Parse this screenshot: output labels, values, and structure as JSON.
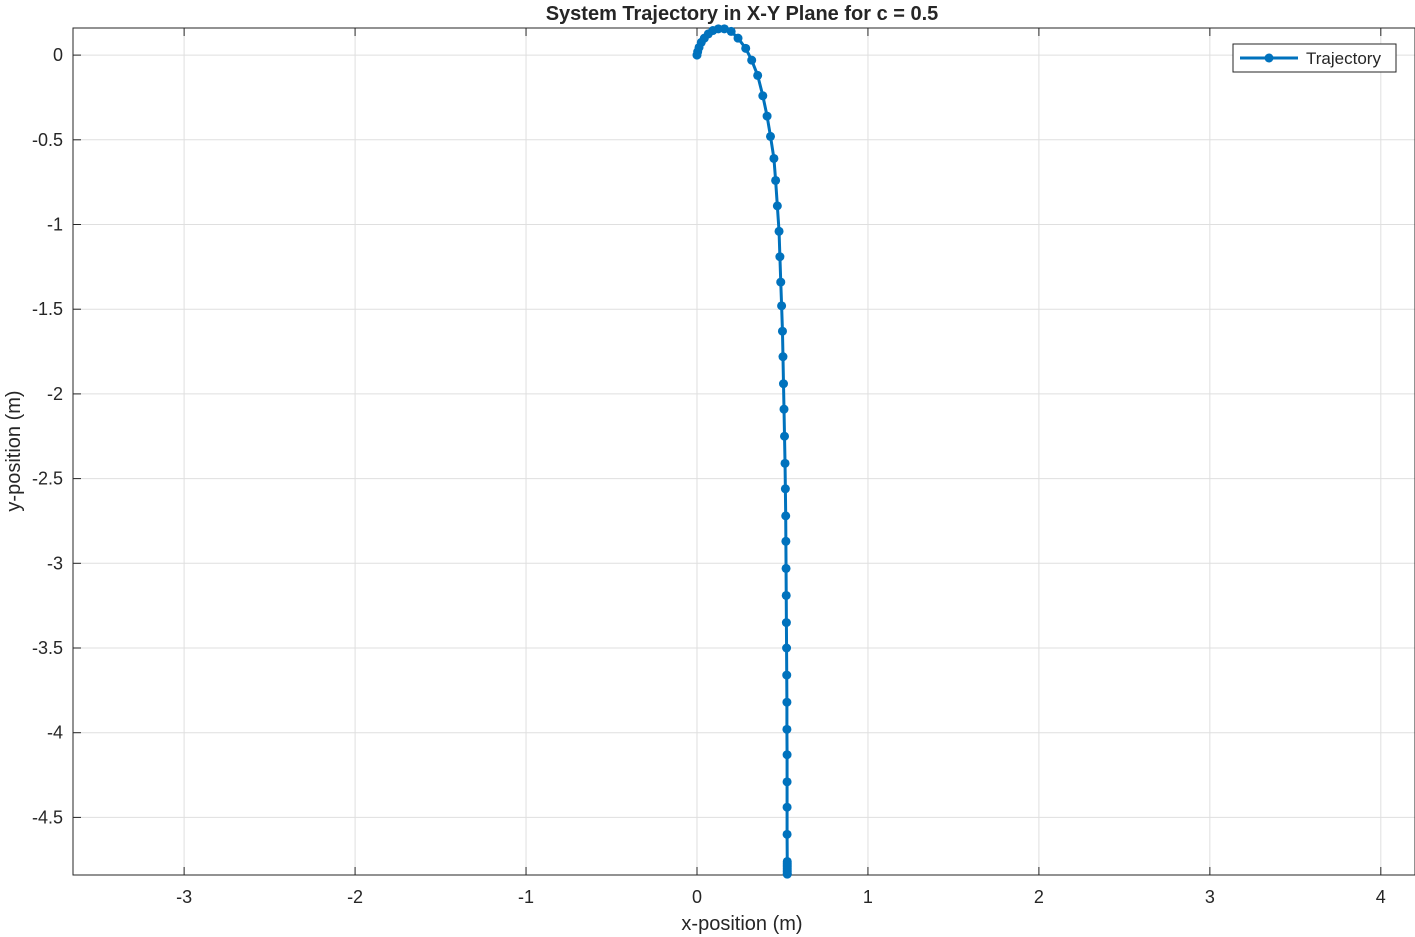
{
  "chart_data": {
    "type": "line",
    "title": "System Trajectory in X-Y Plane for c = 0.5",
    "xlabel": "x-position (m)",
    "ylabel": "y-position (m)",
    "xlim": [
      -3.65,
      4.2
    ],
    "ylim": [
      -4.84,
      0.16
    ],
    "xticks": [
      -3,
      -2,
      -1,
      0,
      1,
      2,
      3,
      4
    ],
    "xtick_labels": [
      "-3",
      "-2",
      "-1",
      "0",
      "1",
      "2",
      "3",
      "4"
    ],
    "yticks": [
      0,
      -0.5,
      -1,
      -1.5,
      -2,
      -2.5,
      -3,
      -3.5,
      -4,
      -4.5
    ],
    "ytick_labels": [
      "0",
      "-0.5",
      "-1",
      "-1.5",
      "-2",
      "-2.5",
      "-3",
      "-3.5",
      "-4",
      "-4.5"
    ],
    "grid": true,
    "legend": {
      "position": "top-right",
      "entries": [
        "Trajectory"
      ]
    },
    "series": [
      {
        "name": "Trajectory",
        "color": "#0072BD",
        "marker": "circle",
        "x": [
          0.0,
          0.004,
          0.012,
          0.025,
          0.043,
          0.066,
          0.093,
          0.125,
          0.16,
          0.2,
          0.24,
          0.285,
          0.32,
          0.355,
          0.385,
          0.41,
          0.43,
          0.45,
          0.46,
          0.47,
          0.48,
          0.485,
          0.49,
          0.495,
          0.5,
          0.503,
          0.506,
          0.509,
          0.512,
          0.515,
          0.517,
          0.519,
          0.52,
          0.521,
          0.522,
          0.523,
          0.524,
          0.525,
          0.526,
          0.526,
          0.527,
          0.527,
          0.527,
          0.527,
          0.528,
          0.528,
          0.528,
          0.528,
          0.528,
          0.528,
          0.528,
          0.528,
          0.528
        ],
        "y": [
          0.0,
          0.02,
          0.045,
          0.075,
          0.1,
          0.125,
          0.145,
          0.155,
          0.155,
          0.14,
          0.1,
          0.04,
          -0.03,
          -0.12,
          -0.24,
          -0.36,
          -0.48,
          -0.61,
          -0.74,
          -0.89,
          -1.04,
          -1.19,
          -1.34,
          -1.48,
          -1.63,
          -1.78,
          -1.94,
          -2.09,
          -2.25,
          -2.41,
          -2.56,
          -2.72,
          -2.87,
          -3.03,
          -3.19,
          -3.35,
          -3.5,
          -3.66,
          -3.82,
          -3.98,
          -4.13,
          -4.29,
          -4.44,
          -4.6,
          -4.76,
          -4.77,
          -4.78,
          -4.79,
          -4.8,
          -4.81,
          -4.82,
          -4.83,
          -4.835
        ]
      }
    ]
  }
}
